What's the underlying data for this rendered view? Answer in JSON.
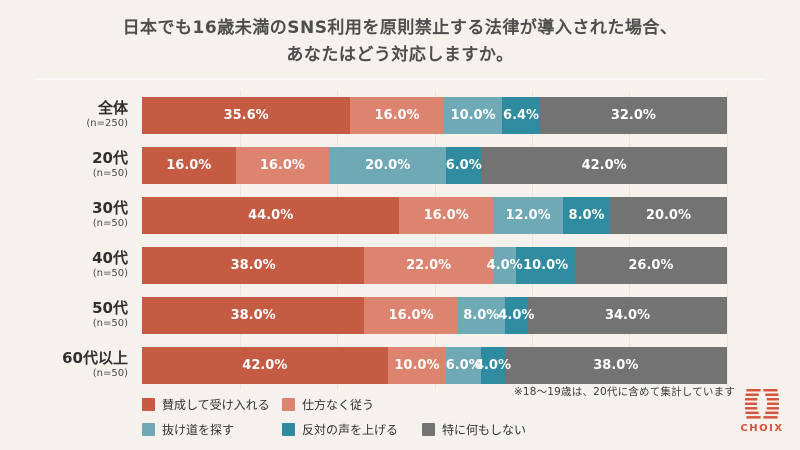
{
  "title": {
    "line1": "日本でも16歳未満のSNS利用を原則禁止する法律が導入された場合、",
    "line2": "あなたはどう対応しますか。"
  },
  "footnote": "※18〜19歳は、20代に含めて集計しています",
  "brand": {
    "name": "CHOIX",
    "color": "#D6533C"
  },
  "colors": {
    "background": "#F5F1EC",
    "title_text": "#4E4E4E",
    "gridline": "#EAE4DD",
    "segment_label": "#FFFFFF"
  },
  "chart_data": {
    "type": "bar",
    "stacked": true,
    "orientation": "horizontal",
    "unit": "%",
    "xlim": [
      0,
      100
    ],
    "grid": true,
    "legend_position": "bottom-left",
    "categories": [
      {
        "label": "全体",
        "n": "(n=250)"
      },
      {
        "label": "20代",
        "n": "(n=50)"
      },
      {
        "label": "30代",
        "n": "(n=50)"
      },
      {
        "label": "40代",
        "n": "(n=50)"
      },
      {
        "label": "50代",
        "n": "(n=50)"
      },
      {
        "label": "60代以上",
        "n": "(n=50)"
      }
    ],
    "series": [
      {
        "name": "賛成して受け入れる",
        "color": "#C65B43",
        "values": [
          35.6,
          16.0,
          44.0,
          38.0,
          38.0,
          42.0
        ]
      },
      {
        "name": "仕方なく従う",
        "color": "#DC8470",
        "values": [
          16.0,
          16.0,
          16.0,
          22.0,
          16.0,
          10.0
        ]
      },
      {
        "name": "抜け道を探す",
        "color": "#6FA9B6",
        "values": [
          10.0,
          20.0,
          12.0,
          4.0,
          8.0,
          6.0
        ]
      },
      {
        "name": "反対の声を上げる",
        "color": "#2E8BA0",
        "values": [
          6.4,
          6.0,
          8.0,
          10.0,
          4.0,
          4.0
        ]
      },
      {
        "name": "特に何もしない",
        "color": "#737373",
        "values": [
          32.0,
          42.0,
          20.0,
          26.0,
          34.0,
          38.0
        ]
      }
    ]
  }
}
